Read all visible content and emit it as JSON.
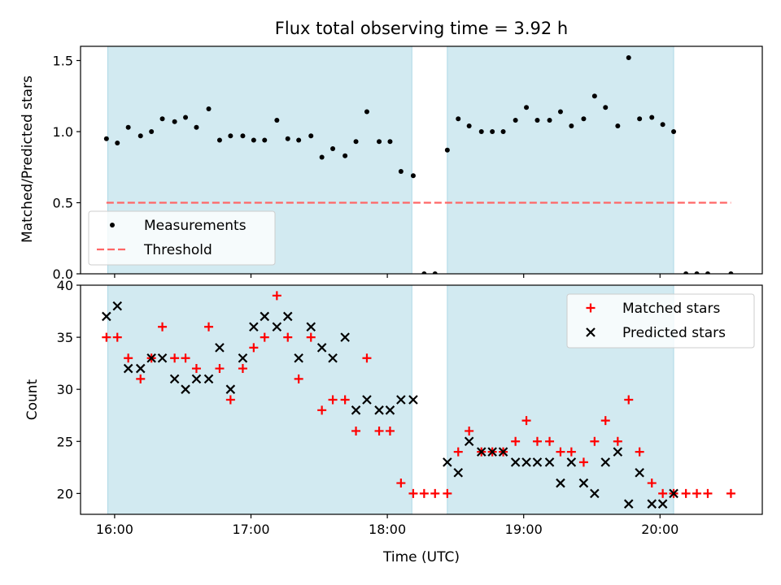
{
  "chart_data": {
    "title": "Flux total observing time = 3.92 h",
    "xlabel": "Time (UTC)",
    "x_unit": "hours UTC",
    "xlim": [
      15.75,
      20.75
    ],
    "x_ticks": [
      {
        "value": 16,
        "label": "16:00"
      },
      {
        "value": 17,
        "label": "17:00"
      },
      {
        "value": 18,
        "label": "18:00"
      },
      {
        "value": 19,
        "label": "19:00"
      },
      {
        "value": 20,
        "label": "20:00"
      }
    ],
    "shaded_intervals": [
      [
        15.95,
        18.18
      ],
      [
        18.44,
        20.1
      ]
    ],
    "shade_color": "#add8e6",
    "panels": [
      {
        "type": "scatter",
        "ylabel": "Matched/Predicted stars",
        "ylim": [
          0,
          1.6
        ],
        "y_ticks": [
          {
            "value": 0,
            "label": "0.0"
          },
          {
            "value": 0.5,
            "label": "0.5"
          },
          {
            "value": 1.0,
            "label": "1.0"
          },
          {
            "value": 1.5,
            "label": "1.5"
          }
        ],
        "legend_position": "lower-left",
        "series": [
          {
            "name": "Measurements",
            "marker": "dot",
            "color": "#000000",
            "x": [
              15.94,
              16.02,
              16.1,
              16.19,
              16.27,
              16.35,
              16.44,
              16.52,
              16.6,
              16.69,
              16.77,
              16.85,
              16.94,
              17.02,
              17.1,
              17.19,
              17.27,
              17.35,
              17.44,
              17.52,
              17.6,
              17.69,
              17.77,
              17.85,
              17.94,
              18.02,
              18.1,
              18.19,
              18.27,
              18.35,
              18.44,
              18.52,
              18.6,
              18.69,
              18.77,
              18.85,
              18.94,
              19.02,
              19.1,
              19.19,
              19.27,
              19.35,
              19.44,
              19.52,
              19.6,
              19.69,
              19.77,
              19.85,
              19.94,
              20.02,
              20.1,
              20.19,
              20.27,
              20.35,
              20.52
            ],
            "y": [
              0.95,
              0.92,
              1.03,
              0.97,
              1.0,
              1.09,
              1.07,
              1.1,
              1.03,
              1.16,
              0.94,
              0.97,
              0.97,
              0.94,
              0.94,
              1.08,
              0.95,
              0.94,
              0.97,
              0.82,
              0.88,
              0.83,
              0.93,
              1.14,
              0.93,
              0.93,
              0.72,
              0.69,
              0.0,
              0.0,
              0.87,
              1.09,
              1.04,
              1.0,
              1.0,
              1.0,
              1.08,
              1.17,
              1.08,
              1.08,
              1.14,
              1.04,
              1.09,
              1.25,
              1.17,
              1.04,
              1.52,
              1.09,
              1.1,
              1.05,
              1.0,
              0.0,
              0.0,
              0.0,
              0.0
            ]
          },
          {
            "name": "Threshold",
            "marker": "dashed-line",
            "color": "#ff6666",
            "x": [
              15.94,
              20.52
            ],
            "y": [
              0.5,
              0.5
            ]
          }
        ]
      },
      {
        "type": "scatter",
        "ylabel": "Count",
        "ylim": [
          18,
          40
        ],
        "y_ticks": [
          {
            "value": 20,
            "label": "20"
          },
          {
            "value": 25,
            "label": "25"
          },
          {
            "value": 30,
            "label": "30"
          },
          {
            "value": 35,
            "label": "35"
          },
          {
            "value": 40,
            "label": "40"
          }
        ],
        "legend_position": "top-right",
        "series": [
          {
            "name": "Matched stars",
            "marker": "plus",
            "color": "#ff0000",
            "x": [
              15.94,
              16.02,
              16.1,
              16.19,
              16.27,
              16.35,
              16.44,
              16.52,
              16.6,
              16.69,
              16.77,
              16.85,
              16.94,
              17.02,
              17.1,
              17.19,
              17.27,
              17.35,
              17.44,
              17.52,
              17.6,
              17.69,
              17.77,
              17.85,
              17.94,
              18.02,
              18.1,
              18.19,
              18.27,
              18.35,
              18.44,
              18.52,
              18.6,
              18.69,
              18.77,
              18.85,
              18.94,
              19.02,
              19.1,
              19.19,
              19.27,
              19.35,
              19.44,
              19.52,
              19.6,
              19.69,
              19.77,
              19.85,
              19.94,
              20.02,
              20.1,
              20.19,
              20.27,
              20.35,
              20.52
            ],
            "y": [
              35,
              35,
              33,
              31,
              33,
              36,
              33,
              33,
              32,
              36,
              32,
              29,
              32,
              34,
              35,
              39,
              35,
              31,
              35,
              28,
              29,
              29,
              26,
              33,
              26,
              26,
              21,
              20,
              20,
              20,
              20,
              24,
              26,
              24,
              24,
              24,
              25,
              27,
              25,
              25,
              24,
              24,
              23,
              25,
              27,
              25,
              29,
              24,
              21,
              20,
              20,
              20,
              20,
              20,
              20
            ]
          },
          {
            "name": "Predicted stars",
            "marker": "x",
            "color": "#000000",
            "x": [
              15.94,
              16.02,
              16.1,
              16.19,
              16.27,
              16.35,
              16.44,
              16.52,
              16.6,
              16.69,
              16.77,
              16.85,
              16.94,
              17.02,
              17.1,
              17.19,
              17.27,
              17.35,
              17.44,
              17.52,
              17.6,
              17.69,
              17.77,
              17.85,
              17.94,
              18.02,
              18.1,
              18.19,
              18.44,
              18.52,
              18.6,
              18.69,
              18.77,
              18.85,
              18.94,
              19.02,
              19.1,
              19.19,
              19.27,
              19.35,
              19.44,
              19.52,
              19.6,
              19.69,
              19.77,
              19.85,
              19.94,
              20.02,
              20.1
            ],
            "y": [
              37,
              38,
              32,
              32,
              33,
              33,
              31,
              30,
              31,
              31,
              34,
              30,
              33,
              36,
              37,
              36,
              37,
              33,
              36,
              34,
              33,
              35,
              28,
              29,
              28,
              28,
              29,
              29,
              23,
              22,
              25,
              24,
              24,
              24,
              23,
              23,
              23,
              23,
              21,
              23,
              21,
              20,
              23,
              24,
              19,
              22,
              19,
              19,
              20
            ]
          }
        ]
      }
    ]
  }
}
